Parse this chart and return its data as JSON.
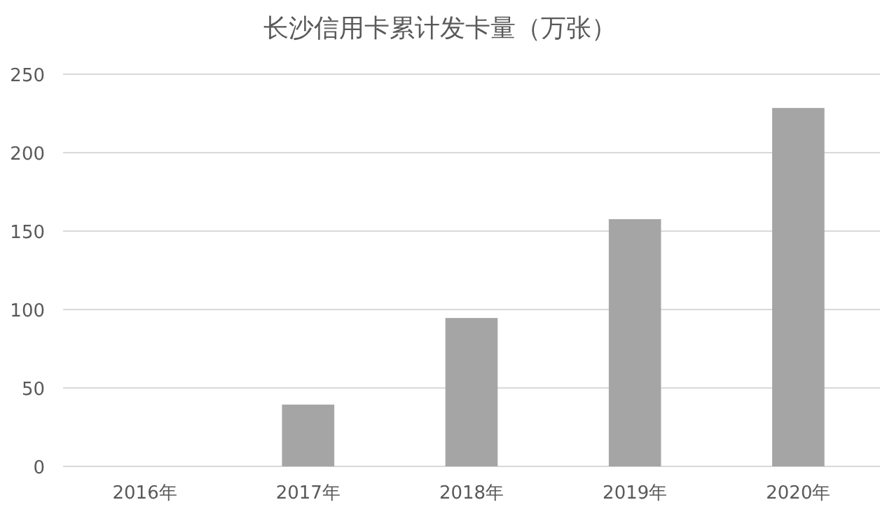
{
  "chart_data": {
    "type": "bar",
    "title": "长沙信用卡累计发卡量（万张）",
    "categories": [
      "2016年",
      "2017年",
      "2018年",
      "2019年",
      "2020年"
    ],
    "values": [
      0,
      39.4,
      94.6,
      157.6,
      228.5
    ],
    "color": "#a5a5a5",
    "ylim": [
      0,
      250
    ],
    "yticks": [
      0,
      50,
      100,
      150,
      200,
      250
    ],
    "grid": "y"
  }
}
